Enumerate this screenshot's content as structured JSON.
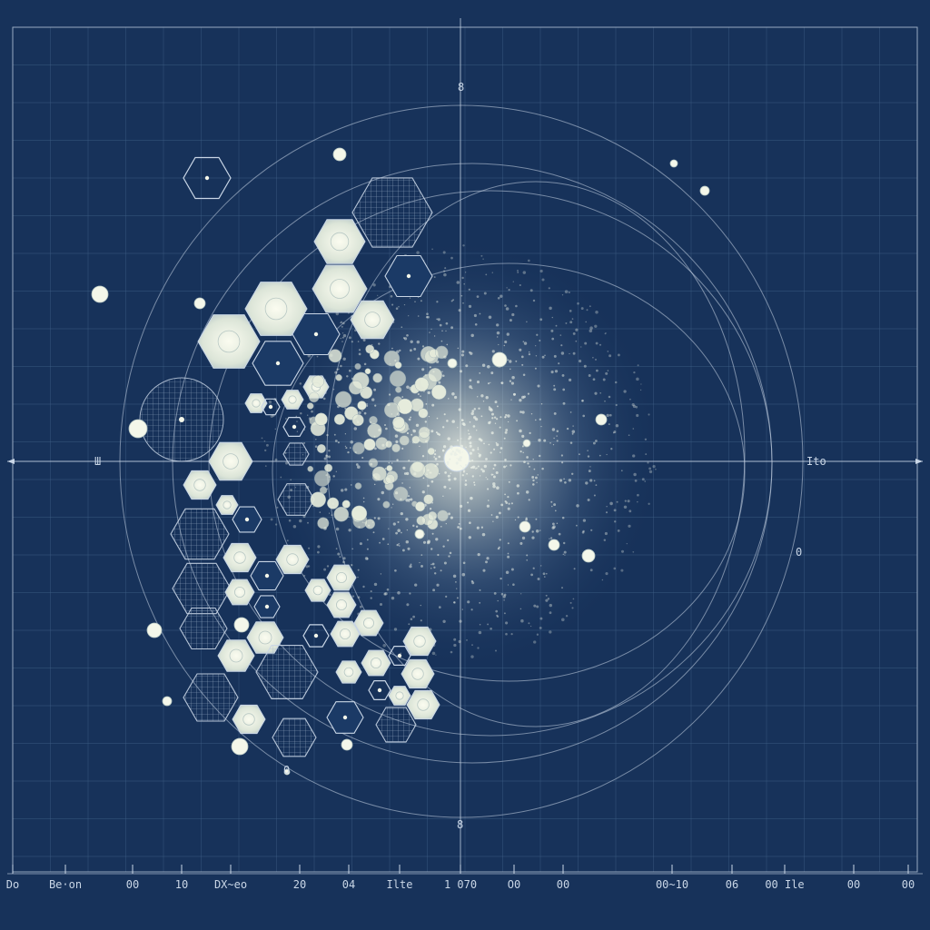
{
  "colors": {
    "background": "#17325a",
    "grid": "#3f5f86",
    "line": "#c9d6e6",
    "glow": "#f4f7ea",
    "hex_fill": "#e9efe0"
  },
  "labels": {
    "left_axis": "Ш",
    "right_axis": "Ito",
    "top_marker": "8",
    "bottom_marker": "8",
    "right_marker": "0",
    "bottom_marker_2": "0"
  },
  "x_tick_labels": [
    "Do",
    "Be·on",
    "00",
    "10",
    "DX~eo",
    "20",
    "04",
    "Ilte",
    "1 070",
    "O0",
    "00",
    "00~10",
    "06",
    "00 Ile",
    "00",
    "00"
  ]
}
